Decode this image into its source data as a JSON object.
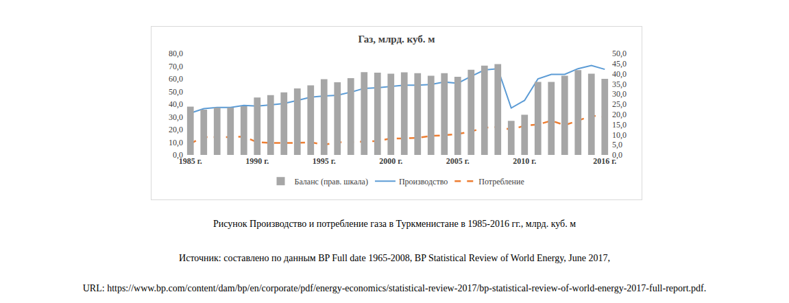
{
  "chart_data": {
    "type": "bar",
    "title": "Газ, млрд. куб. м",
    "categories": [
      "1985 г.",
      null,
      null,
      null,
      null,
      "1990 г.",
      null,
      null,
      null,
      null,
      "1995 г.",
      null,
      null,
      null,
      null,
      "2000 г.",
      null,
      null,
      null,
      null,
      "2005 г.",
      null,
      null,
      null,
      null,
      "2010 г.",
      null,
      null,
      null,
      null,
      null,
      "2016 г."
    ],
    "series": [
      {
        "name": "Баланс (прав. шкала)",
        "type": "bar",
        "axis": "y2",
        "color": "#a6a6a6",
        "values": [
          23.8,
          22.3,
          23.3,
          23.3,
          24.0,
          28.3,
          29.5,
          30.8,
          32.8,
          34.3,
          37.3,
          35.8,
          37.8,
          40.8,
          40.5,
          40.0,
          40.7,
          40.3,
          39.0,
          40.3,
          38.5,
          42.0,
          44.0,
          44.8,
          16.8,
          19.8,
          36.0,
          36.0,
          39.0,
          41.8,
          40.0,
          37.5
        ]
      },
      {
        "name": "Производство",
        "type": "line",
        "line_style": "solid",
        "color": "#5b9bd5",
        "values": [
          33.0,
          36.5,
          37.5,
          37.5,
          39.0,
          38.5,
          39.5,
          40.5,
          43.0,
          45.5,
          46.5,
          47.0,
          49.5,
          52.5,
          53.0,
          54.0,
          55.0,
          55.0,
          55.5,
          57.5,
          56.5,
          62.0,
          67.0,
          68.0,
          37.0,
          43.0,
          60.0,
          63.5,
          63.5,
          68.0,
          70.5,
          67.5
        ]
      },
      {
        "name": "Потребление",
        "type": "line",
        "line_style": "dashed",
        "color": "#ed7d31",
        "values": [
          9.0,
          14.0,
          14.0,
          14.0,
          14.5,
          10.0,
          9.5,
          9.5,
          9.5,
          10.0,
          8.0,
          10.0,
          10.0,
          10.5,
          11.0,
          13.0,
          13.0,
          13.5,
          15.0,
          15.5,
          16.5,
          18.5,
          21.5,
          22.0,
          20.0,
          23.0,
          24.0,
          27.0,
          23.5,
          27.0,
          31.0,
          30.0
        ]
      }
    ],
    "ylim": [
      0,
      80
    ],
    "yticks": [
      {
        "value": 0,
        "label": "0,0"
      },
      {
        "value": 10,
        "label": "10,0"
      },
      {
        "value": 20,
        "label": "20,0"
      },
      {
        "value": 30,
        "label": "30,0"
      },
      {
        "value": 40,
        "label": "40,0"
      },
      {
        "value": 50,
        "label": "50,0"
      },
      {
        "value": 60,
        "label": "60,0"
      },
      {
        "value": 70,
        "label": "70,0"
      },
      {
        "value": 80,
        "label": "80,0"
      }
    ],
    "y2lim": [
      0,
      50
    ],
    "y2ticks": [
      {
        "value": 0,
        "label": "0,0"
      },
      {
        "value": 5,
        "label": "5,0"
      },
      {
        "value": 10,
        "label": "10,0"
      },
      {
        "value": 15,
        "label": "15,0"
      },
      {
        "value": 20,
        "label": "20,0"
      },
      {
        "value": 25,
        "label": "25,0"
      },
      {
        "value": 30,
        "label": "30,0"
      },
      {
        "value": 35,
        "label": "35,0"
      },
      {
        "value": 40,
        "label": "40,0"
      },
      {
        "value": 45,
        "label": "45,0"
      },
      {
        "value": 50,
        "label": "50,0"
      }
    ],
    "grid": false,
    "legend": "bottom"
  },
  "caption": "Рисунок Производство и потребление газа в Туркменистане в 1985-2016 гг., млрд. куб. м",
  "source": "Источник: составлено по данным BP Full date 1965-2008, BP Statistical Review of World Energy, June 2017,",
  "url": "URL: https://www.bp.com/content/dam/bp/en/corporate/pdf/energy-economics/statistical-review-2017/bp-statistical-review-of-world-energy-2017-full-report.pdf."
}
